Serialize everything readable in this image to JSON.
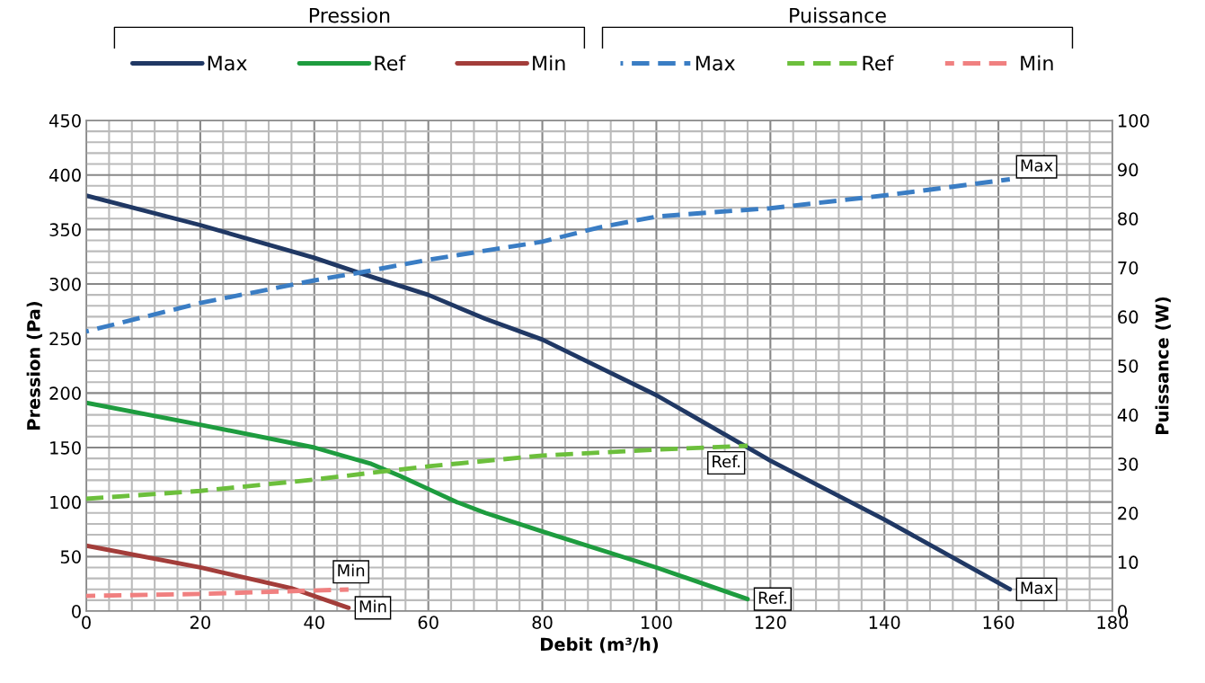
{
  "chart_data": {
    "type": "line",
    "xlabel": "Debit (m³/h)",
    "ylabel": "Pression (Pa)",
    "y2label": "Puissance (W)",
    "xlim": [
      0,
      180
    ],
    "xticks": [
      0,
      20,
      40,
      60,
      80,
      100,
      120,
      140,
      160,
      180
    ],
    "ylim": [
      0,
      450
    ],
    "yticks": [
      0,
      50,
      100,
      150,
      200,
      250,
      300,
      350,
      400,
      450
    ],
    "y2lim": [
      0,
      100
    ],
    "y2ticks": [
      0,
      10,
      20,
      30,
      40,
      50,
      60,
      70,
      80,
      90,
      100
    ],
    "grid": true,
    "legend": "top",
    "marker": "none",
    "series": [
      {
        "name": "Max",
        "color": "#203864",
        "line_style": "solid",
        "x": [
          0,
          20,
          40,
          48,
          60,
          70,
          80,
          100,
          120,
          140,
          162
        ],
        "values": [
          381,
          354,
          324,
          310,
          290,
          268,
          249,
          198,
          138,
          84,
          20
        ]
      },
      {
        "name": "Ref",
        "color": "#1e9c3f",
        "line_style": "solid",
        "x": [
          0,
          20,
          40,
          50,
          55,
          60,
          65,
          70,
          80,
          100,
          116
        ],
        "values": [
          191,
          171,
          150,
          135,
          124,
          112,
          100,
          90,
          73,
          40,
          11
        ]
      },
      {
        "name": "Min",
        "color": "#a33d3a",
        "line_style": "solid",
        "x": [
          0,
          20,
          36,
          46
        ],
        "values": [
          60,
          40,
          21,
          3
        ]
      },
      {
        "name": "Max",
        "color": "#3a7dc4",
        "line_style": "dashed",
        "axis": "y2",
        "x": [
          0,
          20,
          40,
          48,
          60,
          80,
          90,
          100,
          110,
          120,
          140,
          162
        ],
        "values": [
          57,
          62.8,
          67.4,
          69,
          71.6,
          75.3,
          78.2,
          80.4,
          81.3,
          82.1,
          84.7,
          88
        ]
      },
      {
        "name": "Ref",
        "color": "#6cbf3c",
        "line_style": "dashed",
        "axis": "y2",
        "x": [
          0,
          20,
          40,
          50,
          60,
          80,
          100,
          116
        ],
        "values": [
          22.9,
          24.5,
          26.8,
          28.2,
          29.5,
          31.7,
          32.9,
          33.7
        ]
      },
      {
        "name": "Min",
        "color": "#f08080",
        "line_style": "dashed",
        "axis": "y2",
        "x": [
          0,
          20,
          40,
          46
        ],
        "values": [
          3.1,
          3.5,
          4.2,
          4.4
        ]
      }
    ],
    "annotations": [
      "Pression",
      "Puissance",
      {
        "text": "Max",
        "x": 162,
        "y": 20
      },
      {
        "text": "Ref.",
        "x": 116,
        "y": 11
      },
      {
        "text": "Min",
        "x": 46,
        "y": 3
      },
      {
        "text": "Max",
        "x": 162,
        "y": 396
      },
      {
        "text": "Ref.",
        "x": 116,
        "y": 152
      },
      {
        "text": "Min",
        "x": 46,
        "y": 20
      }
    ]
  }
}
